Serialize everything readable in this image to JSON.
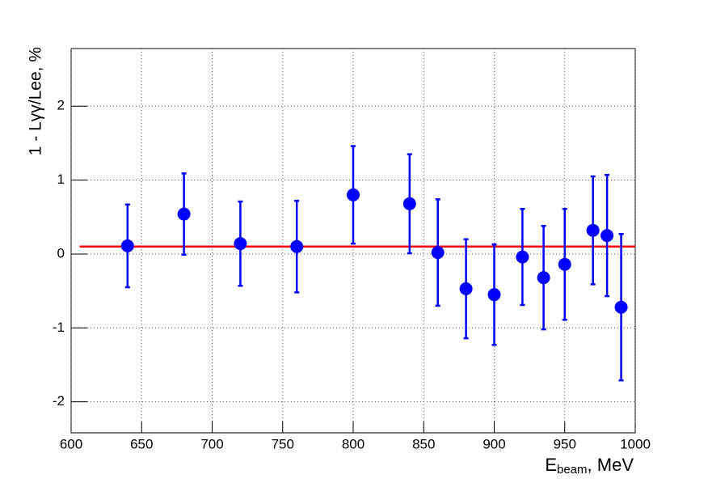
{
  "chart_data": {
    "type": "scatter",
    "x_label": "E",
    "x_label_sub": "beam",
    "x_label_suffix": ", MeV",
    "y_label": "1 - Lγγ/Lee, %",
    "x": [
      640,
      680,
      720,
      760,
      800,
      840,
      860,
      880,
      900,
      920,
      935,
      950,
      970,
      980,
      990
    ],
    "series": [
      {
        "color": "#0000ff",
        "values": [
          0.11,
          0.54,
          0.14,
          0.1,
          0.8,
          0.68,
          0.02,
          -0.47,
          -0.55,
          -0.04,
          -0.32,
          -0.14,
          0.32,
          0.25,
          -0.72
        ],
        "errors": [
          0.56,
          0.55,
          0.57,
          0.62,
          0.66,
          0.67,
          0.72,
          0.67,
          0.68,
          0.65,
          0.7,
          0.75,
          0.73,
          0.82,
          0.99
        ]
      }
    ],
    "fit": {
      "color": "#ff0000",
      "x": [
        606,
        1000
      ],
      "values": [
        0.1,
        0.1
      ]
    },
    "xlim": [
      600,
      1000
    ],
    "ylim": [
      -2.42,
      2.78
    ],
    "xticks": [
      600,
      650,
      700,
      750,
      800,
      850,
      900,
      950,
      1000
    ],
    "yticks": [
      -2,
      -1,
      0,
      1,
      2
    ],
    "grid": true
  }
}
